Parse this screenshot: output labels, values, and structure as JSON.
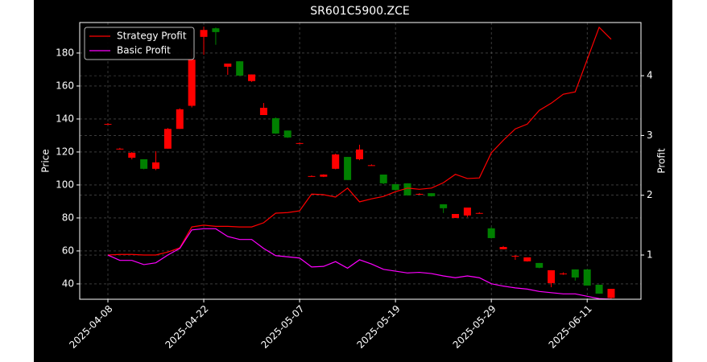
{
  "chart_data": {
    "type": "candlestick",
    "title": "SR601C5900.ZCE",
    "y_label": "Price",
    "y2_label": "Profit",
    "categories": [
      "2025-04-08",
      null,
      null,
      null,
      null,
      null,
      null,
      null,
      "2025-04-22",
      null,
      null,
      null,
      null,
      null,
      null,
      null,
      "2025-05-07",
      null,
      null,
      null,
      null,
      null,
      null,
      null,
      "2025-05-19",
      null,
      null,
      null,
      null,
      null,
      null,
      null,
      "2025-05-29",
      null,
      null,
      null,
      null,
      null,
      null,
      null,
      "2025-06-11",
      null,
      null
    ],
    "open": [
      137,
      122,
      116.5,
      115.6,
      109.8,
      122,
      134,
      148,
      189.8,
      195,
      171.7,
      175,
      163,
      142.4,
      140.5,
      133,
      125.4,
      105.4,
      105,
      109.8,
      117,
      115.6,
      112,
      106.3,
      100.5,
      101,
      94.6,
      95,
      88.3,
      80,
      81.5,
      83,
      73.7,
      61,
      57,
      53.7,
      52.7,
      40.5,
      46.3,
      48.8,
      48.8,
      39.5,
      31.5
    ],
    "high": [
      137.5,
      122.5,
      120,
      115.6,
      120.5,
      134.5,
      146.5,
      183,
      196,
      195.5,
      173.6,
      175,
      167,
      149.7,
      141,
      133,
      125.8,
      105.8,
      106.5,
      119,
      117,
      124.4,
      112.5,
      106.3,
      100.5,
      101,
      95,
      95,
      88.3,
      82.4,
      86.3,
      83.5,
      74.5,
      63,
      57.5,
      56.1,
      52.7,
      48.3,
      47,
      48.8,
      48.8,
      39.5,
      37
    ],
    "low": [
      136.5,
      121.5,
      115.5,
      109.5,
      109,
      122,
      134,
      147,
      179,
      185,
      166.8,
      166,
      162.5,
      142.4,
      131,
      128.5,
      125,
      105,
      104.8,
      109.5,
      103,
      115,
      111.8,
      100.5,
      96.5,
      93.5,
      94.2,
      93,
      83,
      80,
      80.5,
      82.6,
      67.5,
      61,
      54.6,
      53.5,
      49.5,
      38,
      45.5,
      42,
      39,
      34,
      31
    ],
    "close": [
      137,
      122,
      119.5,
      109.8,
      113.7,
      134,
      145.9,
      176,
      194,
      192.7,
      173.6,
      166.3,
      167,
      146.8,
      131.2,
      128.8,
      125.4,
      105.4,
      106.3,
      118.5,
      103,
      121.5,
      112,
      101,
      97,
      93.7,
      94.6,
      93.2,
      85.9,
      82.4,
      86.3,
      83,
      67.8,
      62.4,
      57,
      56.1,
      49.8,
      48.3,
      46.3,
      43.9,
      39,
      34.1,
      37
    ],
    "up_color": "#ff0000",
    "down_color": "#008000",
    "series": [
      {
        "name": "Strategy Profit",
        "color": "#ff0000",
        "axis": "y2",
        "values": [
          1.0,
          1.01,
          1.01,
          1.0,
          1.0,
          1.05,
          1.12,
          1.47,
          1.5,
          1.48,
          1.48,
          1.47,
          1.47,
          1.54,
          1.7,
          1.71,
          1.74,
          2.02,
          2.01,
          1.97,
          2.12,
          1.89,
          1.94,
          1.98,
          2.06,
          2.12,
          2.1,
          2.12,
          2.21,
          2.35,
          2.28,
          2.29,
          2.71,
          2.92,
          3.11,
          3.19,
          3.42,
          3.54,
          3.69,
          3.73,
          4.27,
          4.81,
          4.61
        ]
      },
      {
        "name": "Basic Profit",
        "color": "#ff00ff",
        "axis": "y2",
        "values": [
          1.0,
          0.91,
          0.91,
          0.84,
          0.87,
          1.0,
          1.11,
          1.42,
          1.44,
          1.44,
          1.31,
          1.26,
          1.26,
          1.11,
          0.99,
          0.97,
          0.95,
          0.8,
          0.81,
          0.89,
          0.78,
          0.92,
          0.85,
          0.76,
          0.73,
          0.7,
          0.71,
          0.69,
          0.65,
          0.62,
          0.65,
          0.62,
          0.52,
          0.48,
          0.45,
          0.43,
          0.39,
          0.37,
          0.35,
          0.35,
          0.31,
          0.27,
          0.26
        ]
      }
    ],
    "ylim": [
      30.7,
      198.5
    ],
    "yticks": [
      40,
      60,
      80,
      100,
      120,
      140,
      160,
      180
    ],
    "y2lim": [
      0.26,
      4.89
    ],
    "y2ticks": [
      1,
      2,
      3,
      4
    ],
    "grid": true,
    "legend": "upper left"
  }
}
